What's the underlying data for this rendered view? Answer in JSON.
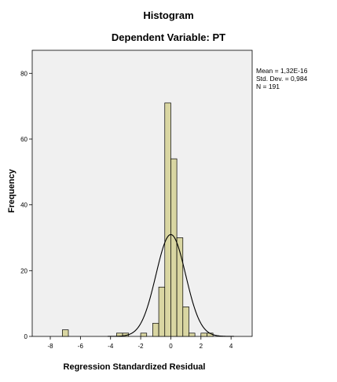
{
  "chart_data": {
    "type": "bar",
    "title": "Histogram",
    "subtitle": "Dependent Variable: PT",
    "xlabel": "Regression Standardized Residual",
    "ylabel": "Frequency",
    "xlim": [
      -9.2,
      5.4
    ],
    "ylim": [
      0,
      87
    ],
    "x_ticks": [
      -8,
      -6,
      -4,
      -2,
      0,
      2,
      4
    ],
    "y_ticks": [
      0,
      20,
      40,
      60,
      80
    ],
    "bin_width": 0.4,
    "bins": [
      {
        "x0": -7.2,
        "x1": -6.8,
        "count": 2
      },
      {
        "x0": -3.6,
        "x1": -3.2,
        "count": 1
      },
      {
        "x0": -3.2,
        "x1": -2.8,
        "count": 1
      },
      {
        "x0": -2.0,
        "x1": -1.6,
        "count": 1
      },
      {
        "x0": -1.2,
        "x1": -0.8,
        "count": 4
      },
      {
        "x0": -0.8,
        "x1": -0.4,
        "count": 15
      },
      {
        "x0": -0.4,
        "x1": 0.0,
        "count": 71
      },
      {
        "x0": 0.0,
        "x1": 0.4,
        "count": 54
      },
      {
        "x0": 0.4,
        "x1": 0.8,
        "count": 30
      },
      {
        "x0": 0.8,
        "x1": 1.2,
        "count": 9
      },
      {
        "x0": 1.2,
        "x1": 1.6,
        "count": 1
      },
      {
        "x0": 2.0,
        "x1": 2.4,
        "count": 1
      },
      {
        "x0": 2.4,
        "x1": 2.8,
        "count": 1
      }
    ],
    "normal_curve": {
      "mean": 0.0,
      "std": 0.984,
      "n": 191
    },
    "stats_text": [
      "Mean = 1,32E-16",
      "Std. Dev. = 0,984",
      "N = 191"
    ],
    "colors": {
      "plot_bg": "#f0f0f0",
      "bar_fill": "#d9d6a2",
      "bar_stroke": "#000000",
      "curve": "#000000"
    }
  }
}
